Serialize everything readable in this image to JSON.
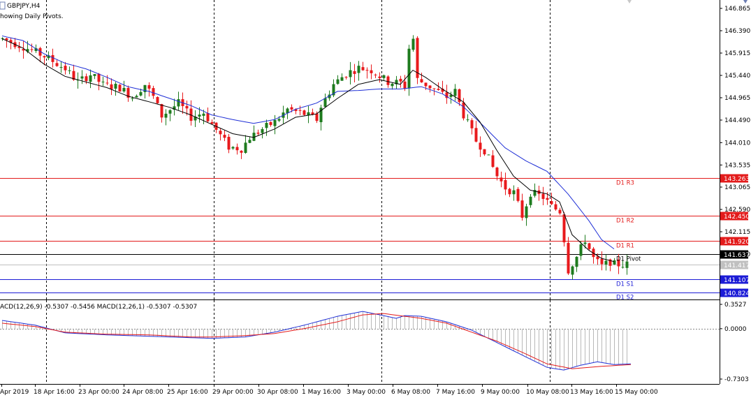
{
  "window": {
    "symbol_title": "GBPJPY,H4",
    "indicator_note": "howing Daily Pivots.",
    "macd_title": "ACD(12,26,9) -0.5307 -0.5456 MACD(12,26,1) -0.5307 -0.5307"
  },
  "colors": {
    "bull": "#1e7b1e",
    "bear": "#e8191c",
    "ma_fast": "#000000",
    "ma_slow": "#1f2fd6",
    "resistance": "#e31b1b",
    "support": "#1b1bd6",
    "macd_line": "#1f2fd6",
    "signal_line": "#e31b1b",
    "histogram": "#b8b8b8"
  },
  "chart_data": [
    {
      "type": "candlestick",
      "title": "GBPJPY,H4",
      "ylim": [
        140.78,
        147.0
      ],
      "y_ticks": [
        "146.865",
        "146.390",
        "145.915",
        "145.440",
        "144.965",
        "144.490",
        "144.010",
        "143.535",
        "143.065",
        "142.590",
        "142.115",
        "141.640"
      ],
      "x_ticks": [
        "Apr 2019",
        "18 Apr 16:00",
        "23 Apr 00:00",
        "24 Apr 08:00",
        "25 Apr 16:00",
        "29 Apr 00:00",
        "30 Apr 08:00",
        "1 May 16:00",
        "3 May 00:00",
        "6 May 08:00",
        "7 May 16:00",
        "9 May 00:00",
        "10 May 08:00",
        "13 May 16:00",
        "15 May 00:00"
      ],
      "pivots": [
        {
          "name": "D1 R3",
          "value": 143.263,
          "tag": "143.263",
          "kind": "res"
        },
        {
          "name": "D1 R2",
          "value": 142.45,
          "tag": "142.450",
          "kind": "res"
        },
        {
          "name": "D1 R1",
          "value": 141.92,
          "tag": "141.920",
          "kind": "res"
        },
        {
          "name": "D1 Pivot",
          "value": 141.637,
          "tag": "141.637",
          "kind": "pivot"
        },
        {
          "name": "D1 S1",
          "value": 141.107,
          "tag": "141.107",
          "kind": "sup"
        },
        {
          "name": "D1 S2",
          "value": 140.824,
          "tag": "140.824",
          "kind": "sup"
        }
      ],
      "current_price": {
        "value": 141.417,
        "tag": "141.417"
      },
      "close_path": [
        [
          0,
          146.22
        ],
        [
          5,
          146.05
        ],
        [
          10,
          145.85
        ],
        [
          15,
          145.58
        ],
        [
          18,
          145.3
        ],
        [
          21,
          145.46
        ],
        [
          24,
          145.24
        ],
        [
          28,
          145.18
        ],
        [
          31,
          144.98
        ],
        [
          34,
          145.25
        ],
        [
          36,
          144.98
        ],
        [
          38,
          144.58
        ],
        [
          42,
          144.85
        ],
        [
          45,
          144.55
        ],
        [
          48,
          144.65
        ],
        [
          51,
          144.28
        ],
        [
          54,
          143.92
        ],
        [
          57,
          143.88
        ],
        [
          59,
          144.12
        ],
        [
          62,
          144.3
        ],
        [
          65,
          144.45
        ],
        [
          68,
          144.72
        ],
        [
          72,
          144.62
        ],
        [
          75,
          144.5
        ],
        [
          76,
          144.78
        ],
        [
          79,
          145.25
        ],
        [
          82,
          145.48
        ],
        [
          85,
          145.6
        ],
        [
          88,
          145.55
        ],
        [
          92,
          145.3
        ],
        [
          95,
          145.28
        ],
        [
          96,
          145.2
        ],
        [
          97,
          146.02
        ],
        [
          98,
          146.22
        ],
        [
          99,
          145.35
        ],
        [
          103,
          145.15
        ],
        [
          106,
          144.98
        ],
        [
          108,
          145.1
        ],
        [
          110,
          144.6
        ],
        [
          113,
          144.05
        ],
        [
          115,
          143.85
        ],
        [
          118,
          143.3
        ],
        [
          120,
          143.05
        ],
        [
          122,
          142.95
        ],
        [
          124,
          142.45
        ],
        [
          126,
          142.95
        ],
        [
          129,
          142.85
        ],
        [
          131,
          142.65
        ],
        [
          133,
          142.55
        ],
        [
          134,
          141.95
        ],
        [
          135,
          141.3
        ],
        [
          137,
          141.58
        ],
        [
          139,
          141.95
        ],
        [
          141,
          141.55
        ],
        [
          143,
          141.38
        ],
        [
          145,
          141.48
        ],
        [
          146,
          141.42
        ]
      ],
      "ma_fast_path": [
        [
          0,
          146.22
        ],
        [
          5,
          146.02
        ],
        [
          10,
          145.68
        ],
        [
          15,
          145.42
        ],
        [
          20,
          145.3
        ],
        [
          25,
          145.18
        ],
        [
          30,
          145.0
        ],
        [
          35,
          144.88
        ],
        [
          40,
          144.76
        ],
        [
          45,
          144.6
        ],
        [
          50,
          144.4
        ],
        [
          55,
          144.2
        ],
        [
          60,
          144.12
        ],
        [
          65,
          144.3
        ],
        [
          70,
          144.55
        ],
        [
          75,
          144.62
        ],
        [
          80,
          144.95
        ],
        [
          85,
          145.25
        ],
        [
          90,
          145.35
        ],
        [
          95,
          145.25
        ],
        [
          98,
          145.55
        ],
        [
          101,
          145.4
        ],
        [
          105,
          145.15
        ],
        [
          110,
          144.88
        ],
        [
          114,
          144.45
        ],
        [
          118,
          143.85
        ],
        [
          122,
          143.3
        ],
        [
          126,
          143.0
        ],
        [
          130,
          142.92
        ],
        [
          133,
          142.75
        ],
        [
          136,
          142.05
        ],
        [
          140,
          141.72
        ],
        [
          143,
          141.55
        ],
        [
          146,
          141.48
        ]
      ],
      "ma_slow_path": [
        [
          0,
          146.28
        ],
        [
          5,
          146.18
        ],
        [
          10,
          145.9
        ],
        [
          15,
          145.7
        ],
        [
          20,
          145.58
        ],
        [
          25,
          145.4
        ],
        [
          30,
          145.2
        ],
        [
          35,
          145.1
        ],
        [
          40,
          144.95
        ],
        [
          45,
          144.8
        ],
        [
          50,
          144.6
        ],
        [
          55,
          144.5
        ],
        [
          60,
          144.42
        ],
        [
          65,
          144.5
        ],
        [
          70,
          144.72
        ],
        [
          75,
          144.85
        ],
        [
          80,
          145.1
        ],
        [
          85,
          145.12
        ],
        [
          90,
          145.15
        ],
        [
          95,
          145.15
        ],
        [
          100,
          145.2
        ],
        [
          105,
          145.05
        ],
        [
          110,
          144.78
        ],
        [
          115,
          144.35
        ],
        [
          120,
          143.9
        ],
        [
          125,
          143.62
        ],
        [
          130,
          143.4
        ],
        [
          135,
          142.92
        ],
        [
          140,
          142.35
        ],
        [
          143,
          141.95
        ],
        [
          146,
          141.75
        ]
      ]
    },
    {
      "type": "macd",
      "title": "ACD(12,26,9) -0.5307 -0.5456 MACD(12,26,1) -0.5307 -0.5307",
      "ylim": [
        -0.77,
        0.4
      ],
      "y_ticks": [
        "0.3527",
        "0.0000",
        "-0.7303"
      ],
      "macd_path": [
        [
          0,
          0.12
        ],
        [
          8,
          0.05
        ],
        [
          15,
          -0.06
        ],
        [
          25,
          -0.09
        ],
        [
          35,
          -0.11
        ],
        [
          45,
          -0.13
        ],
        [
          50,
          -0.14
        ],
        [
          58,
          -0.12
        ],
        [
          65,
          -0.05
        ],
        [
          72,
          0.05
        ],
        [
          80,
          0.18
        ],
        [
          86,
          0.25
        ],
        [
          91,
          0.19
        ],
        [
          94,
          0.15
        ],
        [
          96,
          0.19
        ],
        [
          100,
          0.18
        ],
        [
          106,
          0.1
        ],
        [
          112,
          -0.02
        ],
        [
          118,
          -0.2
        ],
        [
          124,
          -0.38
        ],
        [
          130,
          -0.56
        ],
        [
          134,
          -0.6
        ],
        [
          138,
          -0.53
        ],
        [
          142,
          -0.48
        ],
        [
          146,
          -0.52
        ],
        [
          150,
          -0.51
        ],
        [
          160,
          -0.53
        ],
        [
          171,
          -0.53
        ]
      ],
      "signal_path": [
        [
          0,
          0.08
        ],
        [
          8,
          0.03
        ],
        [
          15,
          -0.05
        ],
        [
          25,
          -0.08
        ],
        [
          35,
          -0.09
        ],
        [
          45,
          -0.12
        ],
        [
          50,
          -0.12
        ],
        [
          58,
          -0.1
        ],
        [
          65,
          -0.07
        ],
        [
          72,
          0.0
        ],
        [
          80,
          0.1
        ],
        [
          86,
          0.2
        ],
        [
          91,
          0.22
        ],
        [
          96,
          0.18
        ],
        [
          100,
          0.15
        ],
        [
          106,
          0.08
        ],
        [
          112,
          -0.05
        ],
        [
          118,
          -0.18
        ],
        [
          124,
          -0.34
        ],
        [
          130,
          -0.51
        ],
        [
          136,
          -0.58
        ],
        [
          142,
          -0.55
        ],
        [
          150,
          -0.52
        ],
        [
          160,
          -0.54
        ],
        [
          171,
          -0.53
        ]
      ],
      "hist_range": [
        -0.6,
        0.25
      ]
    }
  ]
}
